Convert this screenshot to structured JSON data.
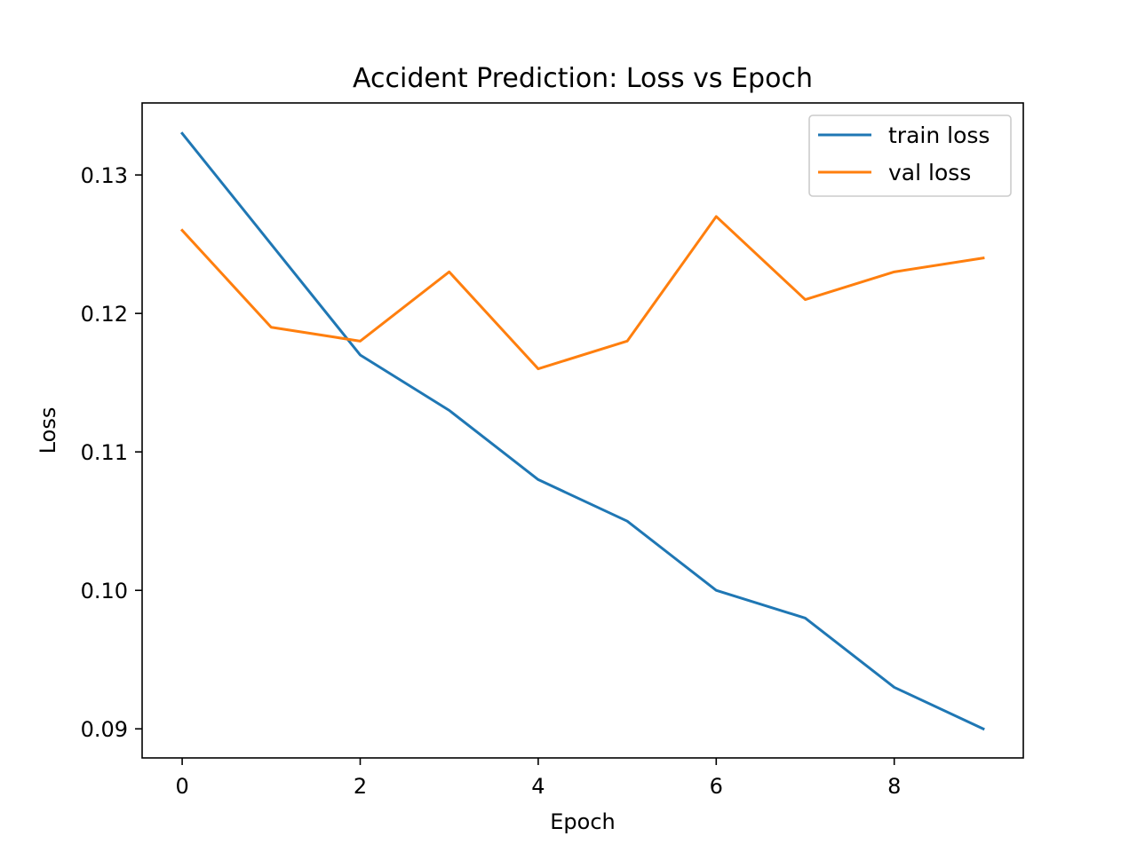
{
  "chart_data": {
    "type": "line",
    "title": "Accident Prediction: Loss vs Epoch",
    "xlabel": "Epoch",
    "ylabel": "Loss",
    "x": [
      0,
      1,
      2,
      3,
      4,
      5,
      6,
      7,
      8,
      9
    ],
    "xlim": [
      -0.45,
      9.45
    ],
    "ylim": [
      0.0879,
      0.1352
    ],
    "xticks": [
      0,
      2,
      4,
      6,
      8
    ],
    "yticks": [
      0.09,
      0.1,
      0.11,
      0.12,
      0.13
    ],
    "xtick_labels": [
      "0",
      "2",
      "4",
      "6",
      "8"
    ],
    "ytick_labels": [
      "0.09",
      "0.10",
      "0.11",
      "0.12",
      "0.13"
    ],
    "grid": false,
    "legend_position": "top-right",
    "series": [
      {
        "name": "train loss",
        "color": "#1f77b4",
        "values": [
          0.133,
          0.125,
          0.117,
          0.113,
          0.108,
          0.105,
          0.1,
          0.098,
          0.093,
          0.09
        ]
      },
      {
        "name": "val loss",
        "color": "#ff7f0e",
        "values": [
          0.126,
          0.119,
          0.118,
          0.123,
          0.116,
          0.118,
          0.127,
          0.121,
          0.123,
          0.124
        ]
      }
    ]
  }
}
